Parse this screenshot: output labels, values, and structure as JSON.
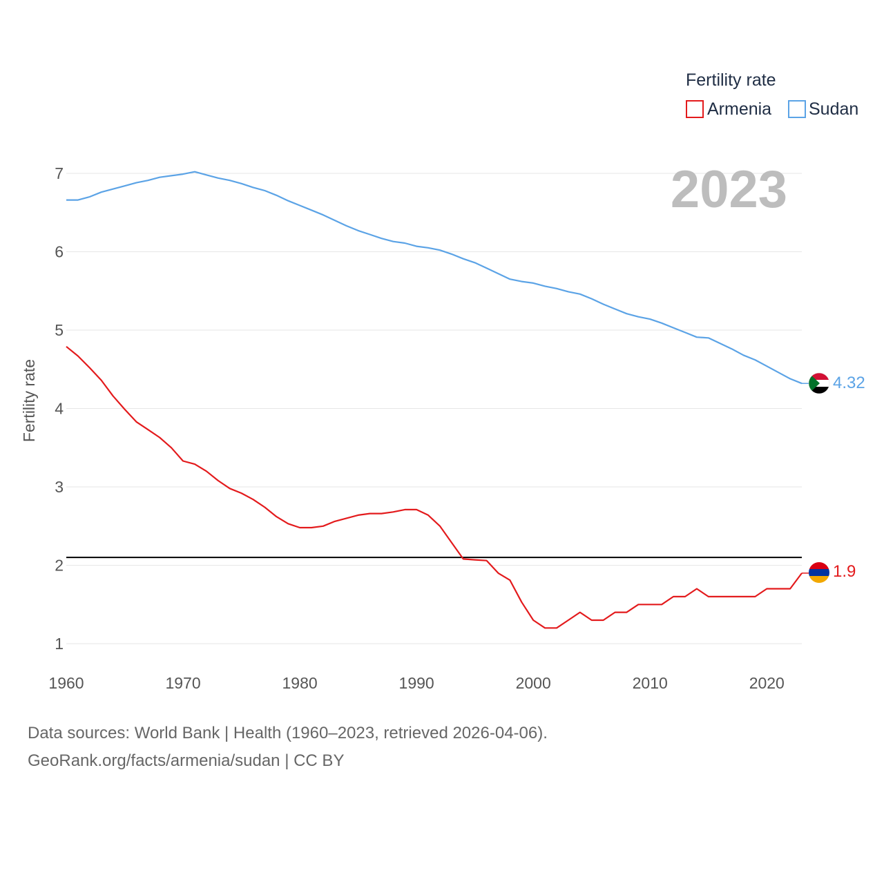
{
  "chart_data": {
    "type": "line",
    "title": "",
    "ylabel": "Fertility rate",
    "xlabel": "",
    "year_label": "2023",
    "legend": {
      "title": "Fertility rate",
      "placement": "top-right"
    },
    "xlim": [
      1960,
      2023
    ],
    "ylim": [
      1,
      7.1
    ],
    "x_ticks": [
      1960,
      1970,
      1980,
      1990,
      2000,
      2010,
      2020
    ],
    "y_ticks": [
      1,
      2,
      3,
      4,
      5,
      6,
      7
    ],
    "reference_line": {
      "value": 2.1,
      "color": "#000000"
    },
    "x": [
      1960,
      1961,
      1962,
      1963,
      1964,
      1965,
      1966,
      1967,
      1968,
      1969,
      1970,
      1971,
      1972,
      1973,
      1974,
      1975,
      1976,
      1977,
      1978,
      1979,
      1980,
      1981,
      1982,
      1983,
      1984,
      1985,
      1986,
      1987,
      1988,
      1989,
      1990,
      1991,
      1992,
      1993,
      1994,
      1995,
      1996,
      1997,
      1998,
      1999,
      2000,
      2001,
      2002,
      2003,
      2004,
      2005,
      2006,
      2007,
      2008,
      2009,
      2010,
      2011,
      2012,
      2013,
      2014,
      2015,
      2016,
      2017,
      2018,
      2019,
      2020,
      2021,
      2022,
      2023
    ],
    "series": [
      {
        "name": "Armenia",
        "color": "#e31a1c",
        "end_label": "1.9",
        "flag": "armenia-flag-icon",
        "values": [
          4.79,
          4.67,
          4.52,
          4.36,
          4.16,
          3.99,
          3.83,
          3.73,
          3.63,
          3.5,
          3.33,
          3.29,
          3.2,
          3.08,
          2.98,
          2.92,
          2.84,
          2.74,
          2.62,
          2.53,
          2.48,
          2.48,
          2.5,
          2.56,
          2.6,
          2.64,
          2.66,
          2.66,
          2.68,
          2.71,
          2.71,
          2.64,
          2.5,
          2.29,
          2.08,
          2.07,
          2.06,
          1.9,
          1.81,
          1.53,
          1.3,
          1.2,
          1.2,
          1.3,
          1.4,
          1.3,
          1.3,
          1.4,
          1.4,
          1.5,
          1.5,
          1.5,
          1.6,
          1.6,
          1.7,
          1.6,
          1.6,
          1.6,
          1.6,
          1.6,
          1.7,
          1.7,
          1.7,
          1.9
        ]
      },
      {
        "name": "Sudan",
        "color": "#5ba3e6",
        "end_label": "4.32",
        "flag": "sudan-flag-icon",
        "values": [
          6.66,
          6.66,
          6.7,
          6.76,
          6.8,
          6.84,
          6.88,
          6.91,
          6.95,
          6.97,
          6.99,
          7.02,
          6.98,
          6.94,
          6.91,
          6.87,
          6.82,
          6.78,
          6.72,
          6.65,
          6.59,
          6.53,
          6.47,
          6.4,
          6.33,
          6.27,
          6.22,
          6.17,
          6.13,
          6.11,
          6.07,
          6.05,
          6.02,
          5.97,
          5.91,
          5.86,
          5.79,
          5.72,
          5.65,
          5.62,
          5.6,
          5.56,
          5.53,
          5.49,
          5.46,
          5.4,
          5.33,
          5.27,
          5.21,
          5.17,
          5.14,
          5.09,
          5.03,
          4.97,
          4.91,
          4.9,
          4.83,
          4.76,
          4.68,
          4.62,
          4.54,
          4.46,
          4.38,
          4.32
        ]
      }
    ]
  },
  "footer": {
    "line1": "Data sources: World Bank | Health (1960–2023, retrieved 2026-04-06).",
    "line2": "GeoRank.org/facts/armenia/sudan | CC BY"
  }
}
